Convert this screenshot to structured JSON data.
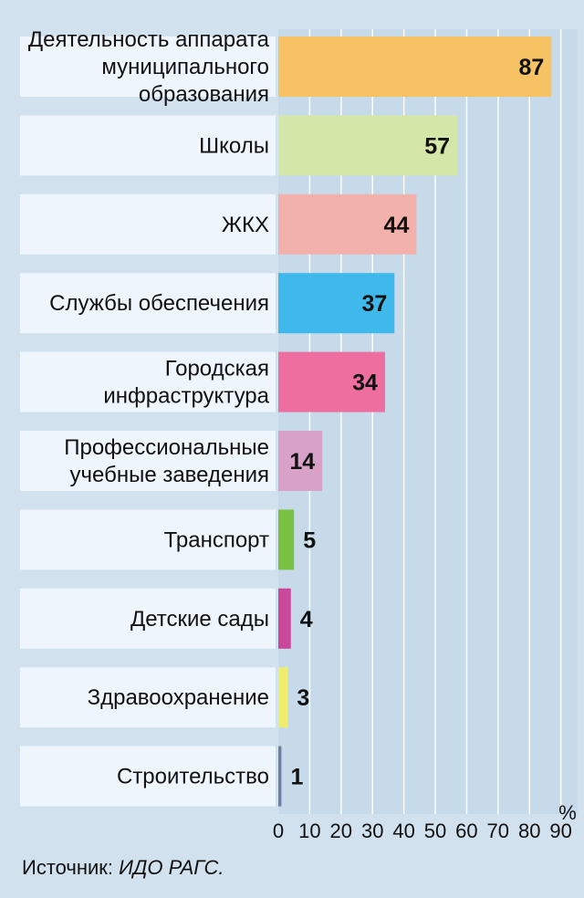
{
  "chart_data": {
    "type": "bar",
    "orientation": "horizontal",
    "categories": [
      [
        "Деятельность аппарата",
        "муниципального",
        "образования"
      ],
      [
        "Школы"
      ],
      [
        "ЖКХ"
      ],
      [
        "Службы обеспечения"
      ],
      [
        "Городская",
        "инфраструктура"
      ],
      [
        "Профессиональные",
        "учебные заведения"
      ],
      [
        "Транспорт"
      ],
      [
        "Детские сады"
      ],
      [
        "Здравоохранение"
      ],
      [
        "Строительство"
      ]
    ],
    "values": [
      87,
      57,
      44,
      37,
      34,
      14,
      5,
      4,
      3,
      1
    ],
    "value_labels": [
      "87",
      "57",
      "44",
      "37",
      "34",
      "14",
      "5",
      "4",
      "3",
      "1"
    ],
    "colors": [
      "#f6c264",
      "#d5e7a8",
      "#f3b1ab",
      "#3fb8ec",
      "#ef6ea0",
      "#d7a1c8",
      "#79c142",
      "#c9489a",
      "#eeee6c",
      "#6c7fa6"
    ],
    "xticks": [
      "0",
      "10",
      "20",
      "30",
      "40",
      "50",
      "60",
      "70",
      "80",
      "90"
    ],
    "xlim": [
      0,
      90
    ],
    "unit": "%",
    "grid": true
  },
  "source": {
    "label": "Источник:",
    "name": "ИДО РАГС."
  }
}
